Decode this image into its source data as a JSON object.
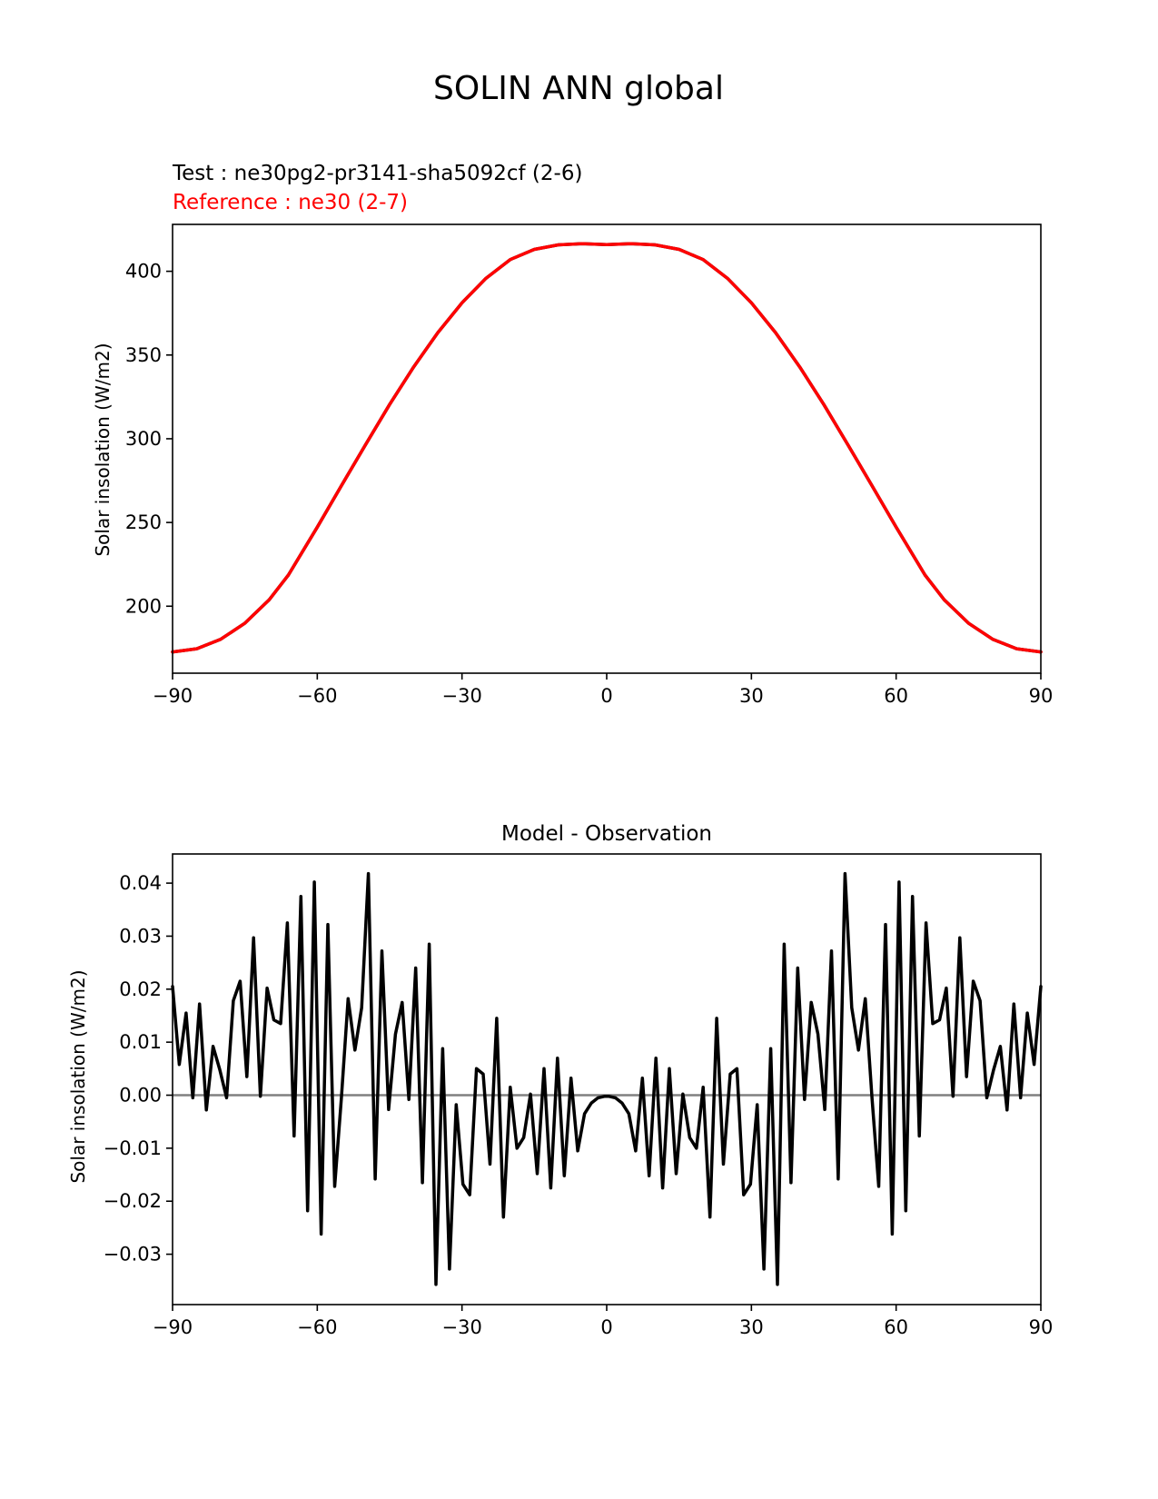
{
  "figure_title": "SOLIN ANN global",
  "colors": {
    "test": "#000000",
    "reference": "#ff0000",
    "zero_line": "#808080",
    "axes": "#000000"
  },
  "chart_data": [
    {
      "type": "line",
      "subtitle_test": "Test : ne30pg2-pr3141-sha5092cf (2-6)",
      "subtitle_reference": "Reference : ne30 (2-7)",
      "xlabel": "",
      "ylabel": "Solar insolation (W/m2)",
      "xlim": [
        -90,
        90
      ],
      "ylim": [
        160,
        428
      ],
      "xticks": [
        -90,
        -60,
        -30,
        0,
        30,
        60,
        90
      ],
      "xtick_labels": [
        "−90",
        "−60",
        "−30",
        "0",
        "30",
        "60",
        "90"
      ],
      "yticks": [
        200,
        250,
        300,
        350,
        400
      ],
      "ytick_labels": [
        "200",
        "250",
        "300",
        "350",
        "400"
      ],
      "series": [
        {
          "name": "Test",
          "color": "#000000",
          "x": [
            -90,
            -85,
            -80,
            -75,
            -70,
            -66,
            -60,
            -55,
            -50,
            -45,
            -40,
            -35,
            -30,
            -25,
            -20,
            -15,
            -10,
            -5,
            0,
            5,
            10,
            15,
            20,
            25,
            30,
            35,
            40,
            45,
            50,
            55,
            60,
            66,
            70,
            75,
            80,
            85,
            90
          ],
          "y": [
            172.7,
            174.6,
            180.3,
            189.9,
            203.7,
            218.6,
            247.2,
            272.0,
            296.4,
            320.5,
            343.0,
            363.4,
            381.2,
            395.9,
            407.0,
            413.1,
            415.8,
            416.5,
            415.9,
            416.5,
            415.8,
            413.1,
            407.0,
            395.9,
            381.2,
            363.4,
            343.0,
            320.5,
            296.4,
            272.0,
            247.2,
            218.6,
            203.7,
            189.9,
            180.3,
            174.6,
            172.7
          ]
        },
        {
          "name": "Reference",
          "color": "#ff0000",
          "x": [
            -90,
            -85,
            -80,
            -75,
            -70,
            -66,
            -60,
            -55,
            -50,
            -45,
            -40,
            -35,
            -30,
            -25,
            -20,
            -15,
            -10,
            -5,
            0,
            5,
            10,
            15,
            20,
            25,
            30,
            35,
            40,
            45,
            50,
            55,
            60,
            66,
            70,
            75,
            80,
            85,
            90
          ],
          "y": [
            172.7,
            174.6,
            180.3,
            189.9,
            203.7,
            218.6,
            247.2,
            272.0,
            296.4,
            320.5,
            343.0,
            363.4,
            381.2,
            395.9,
            407.0,
            413.1,
            415.8,
            416.5,
            415.9,
            416.5,
            415.8,
            413.1,
            407.0,
            395.9,
            381.2,
            363.4,
            343.0,
            320.5,
            296.4,
            272.0,
            247.2,
            218.6,
            203.7,
            189.9,
            180.3,
            174.6,
            172.7
          ]
        }
      ]
    },
    {
      "type": "line",
      "title": "Model - Observation",
      "xlabel": "",
      "ylabel": "Solar insolation (W/m2)",
      "xlim": [
        -90,
        90
      ],
      "ylim": [
        -0.0395,
        0.0455
      ],
      "xticks": [
        -90,
        -60,
        -30,
        0,
        30,
        60,
        90
      ],
      "xtick_labels": [
        "−90",
        "−60",
        "−30",
        "0",
        "30",
        "60",
        "90"
      ],
      "yticks": [
        -0.03,
        -0.02,
        -0.01,
        0.0,
        0.01,
        0.02,
        0.03,
        0.04
      ],
      "ytick_labels": [
        "−0.03",
        "−0.02",
        "−0.01",
        "0.00",
        "0.01",
        "0.02",
        "0.03",
        "0.04"
      ],
      "zero_line": 0.0,
      "series": [
        {
          "name": "Model - Observation",
          "color": "#000000",
          "x": [
            -90.0,
            -88.6,
            -87.2,
            -85.8,
            -84.4,
            -83.0,
            -81.6,
            -80.2,
            -78.8,
            -77.4,
            -76.0,
            -74.6,
            -73.2,
            -71.8,
            -70.4,
            -69.0,
            -67.6,
            -66.2,
            -64.8,
            -63.4,
            -62.0,
            -60.6,
            -59.2,
            -57.8,
            -56.4,
            -55.0,
            -53.6,
            -52.2,
            -50.8,
            -49.4,
            -48.0,
            -46.6,
            -45.2,
            -43.8,
            -42.4,
            -41.0,
            -39.6,
            -38.2,
            -36.8,
            -35.4,
            -34.0,
            -32.6,
            -31.2,
            -29.8,
            -28.4,
            -27.0,
            -25.6,
            -24.2,
            -22.8,
            -21.4,
            -20.0,
            -18.6,
            -17.2,
            -15.8,
            -14.4,
            -13.0,
            -11.6,
            -10.2,
            -8.8,
            -7.4,
            -6.0,
            -4.6,
            -3.2,
            -1.8,
            -0.4,
            0.4,
            1.8,
            3.2,
            4.6,
            6.0,
            7.4,
            8.8,
            10.2,
            11.6,
            13.0,
            14.4,
            15.8,
            17.2,
            18.6,
            20.0,
            21.4,
            22.8,
            24.2,
            25.6,
            27.0,
            28.4,
            29.8,
            31.2,
            32.6,
            34.0,
            35.4,
            36.8,
            38.2,
            39.6,
            41.0,
            42.4,
            43.8,
            45.2,
            46.6,
            48.0,
            49.4,
            50.8,
            52.2,
            53.6,
            55.0,
            56.4,
            57.8,
            59.2,
            60.6,
            62.0,
            63.4,
            64.8,
            66.2,
            67.6,
            69.0,
            70.4,
            71.8,
            73.2,
            74.6,
            76.0,
            77.4,
            78.8,
            80.2,
            81.6,
            83.0,
            84.4,
            85.8,
            87.2,
            88.6,
            90.0
          ],
          "y": [
            0.0205,
            0.0058,
            0.0155,
            -0.0005,
            0.0172,
            -0.0028,
            0.0092,
            0.0048,
            -0.0005,
            0.0178,
            0.0215,
            0.0035,
            0.0297,
            -0.0002,
            0.0202,
            0.0142,
            0.0135,
            0.0325,
            -0.0077,
            0.0375,
            -0.0218,
            0.0402,
            -0.0262,
            0.0322,
            -0.0172,
            -0.0005,
            0.0182,
            0.0085,
            0.0165,
            0.0418,
            -0.0158,
            0.0272,
            -0.0027,
            0.0115,
            0.0175,
            -0.0008,
            0.024,
            -0.0165,
            0.0285,
            -0.0357,
            0.0088,
            -0.0328,
            -0.0018,
            -0.0168,
            -0.0188,
            0.005,
            0.004,
            -0.013,
            0.0145,
            -0.023,
            0.0015,
            -0.01,
            -0.008,
            0.0002,
            -0.0148,
            0.005,
            -0.0175,
            0.007,
            -0.0152,
            0.0032,
            -0.0105,
            -0.0035,
            -0.0015,
            -0.0005,
            -0.0002,
            -0.0002,
            -0.0005,
            -0.0015,
            -0.0035,
            -0.0105,
            0.0032,
            -0.0152,
            0.007,
            -0.0175,
            0.005,
            -0.0148,
            0.0002,
            -0.008,
            -0.01,
            0.0015,
            -0.023,
            0.0145,
            -0.013,
            0.004,
            0.005,
            -0.0188,
            -0.0168,
            -0.0018,
            -0.0328,
            0.0088,
            -0.0357,
            0.0285,
            -0.0165,
            0.024,
            -0.0008,
            0.0175,
            0.0115,
            -0.0027,
            0.0272,
            -0.0158,
            0.0418,
            0.0165,
            0.0085,
            0.0182,
            -0.0005,
            -0.0172,
            0.0322,
            -0.0262,
            0.0402,
            -0.0218,
            0.0375,
            -0.0077,
            0.0325,
            0.0135,
            0.0142,
            0.0202,
            -0.0002,
            0.0297,
            0.0035,
            0.0215,
            0.0178,
            -0.0005,
            0.0048,
            0.0092,
            -0.0028,
            0.0172,
            -0.0005,
            0.0155,
            0.0058,
            0.0205
          ]
        }
      ]
    }
  ]
}
